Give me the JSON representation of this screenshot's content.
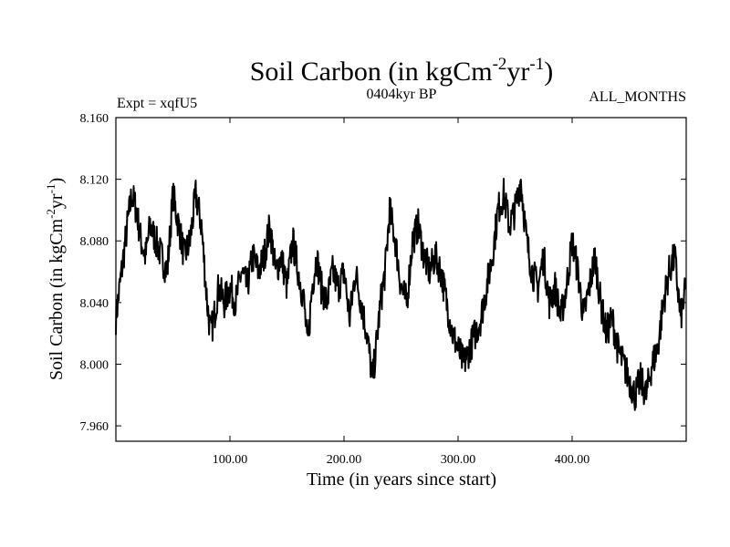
{
  "chart_data": {
    "type": "line",
    "title": "Soil Carbon (in kgCm",
    "title_sup1": "-2",
    "title_mid": "yr",
    "title_sup2": "-1",
    "title_end": ")",
    "subtitle_left": "Expt = xqfU5",
    "subtitle_center": "0404kyr BP",
    "subtitle_right": "ALL_MONTHS",
    "xlabel": "Time (in years since start)",
    "ylabel": "Soil Carbon (in kgCm",
    "ylabel_sup1": "-2",
    "ylabel_mid": "yr",
    "ylabel_sup2": "-1",
    "ylabel_end": ")",
    "xlim": [
      0,
      500
    ],
    "ylim": [
      7.95,
      8.16
    ],
    "x_ticks": [
      100,
      200,
      300,
      400
    ],
    "x_tick_labels": [
      "100.00",
      "200.00",
      "300.00",
      "400.00"
    ],
    "y_ticks": [
      7.96,
      8.0,
      8.04,
      8.08,
      8.12,
      8.16
    ],
    "y_tick_labels": [
      "7.960",
      "8.000",
      "8.040",
      "8.080",
      "8.120",
      "8.160"
    ],
    "line_color": "#000000",
    "series": [
      {
        "name": "Soil Carbon",
        "x": [
          0,
          5,
          10,
          14,
          18,
          22,
          26,
          30,
          35,
          40,
          45,
          50,
          55,
          60,
          65,
          70,
          75,
          80,
          83,
          86,
          90,
          95,
          100,
          105,
          110,
          115,
          120,
          125,
          130,
          135,
          140,
          145,
          150,
          155,
          160,
          165,
          168,
          172,
          176,
          180,
          185,
          190,
          195,
          200,
          205,
          210,
          215,
          220,
          225,
          228,
          232,
          236,
          240,
          245,
          250,
          255,
          260,
          265,
          270,
          275,
          280,
          285,
          290,
          295,
          300,
          305,
          310,
          315,
          320,
          325,
          330,
          335,
          340,
          345,
          350,
          355,
          360,
          365,
          370,
          375,
          380,
          385,
          390,
          395,
          400,
          405,
          410,
          415,
          420,
          425,
          430,
          435,
          440,
          445,
          450,
          455,
          460,
          465,
          470,
          475,
          480,
          485,
          490,
          495,
          500
        ],
        "y": [
          8.03,
          8.06,
          8.09,
          8.11,
          8.1,
          8.08,
          8.07,
          8.09,
          8.08,
          8.07,
          8.06,
          8.11,
          8.09,
          8.07,
          8.08,
          8.11,
          8.09,
          8.04,
          8.02,
          8.03,
          8.05,
          8.04,
          8.05,
          8.04,
          8.06,
          8.05,
          8.07,
          8.06,
          8.07,
          8.09,
          8.06,
          8.07,
          8.05,
          8.08,
          8.06,
          8.04,
          8.01,
          8.05,
          8.07,
          8.05,
          8.04,
          8.06,
          8.05,
          8.06,
          8.03,
          8.06,
          8.04,
          8.02,
          7.99,
          8.01,
          8.04,
          8.06,
          8.1,
          8.08,
          8.05,
          8.04,
          8.08,
          8.09,
          8.07,
          8.06,
          8.07,
          8.06,
          8.04,
          8.02,
          8.01,
          8.0,
          8.01,
          8.02,
          8.03,
          8.05,
          8.07,
          8.1,
          8.11,
          8.09,
          8.1,
          8.12,
          8.08,
          8.06,
          8.05,
          8.07,
          8.04,
          8.05,
          8.03,
          8.05,
          8.08,
          8.06,
          8.03,
          8.05,
          8.07,
          8.04,
          8.02,
          8.03,
          8.01,
          8.0,
          7.99,
          7.98,
          7.99,
          7.98,
          8.0,
          8.01,
          8.04,
          8.06,
          8.07,
          8.03,
          8.05
        ]
      }
    ]
  }
}
